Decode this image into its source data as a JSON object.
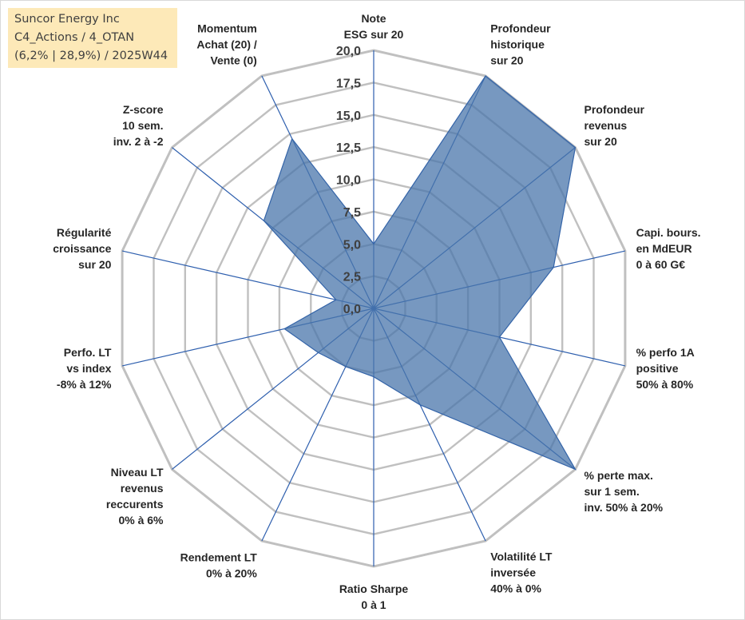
{
  "info": {
    "company": "Suncor Energy Inc",
    "category": "C4_Actions / 4_OTAN",
    "stats": "(6,2% | 28,9%) / 2025W44"
  },
  "colors": {
    "fill": "#4a76ab",
    "stroke": "#3464a8",
    "grid": "#c0c0c0",
    "spoke": "#2e5fae",
    "info_bg": "#fde9b8"
  },
  "chart_data": {
    "type": "radar",
    "title": "",
    "r_range": [
      0,
      20
    ],
    "r_ticks": [
      "0,0",
      "2,5",
      "5,0",
      "7,5",
      "10,0",
      "12,5",
      "15,0",
      "17,5",
      "20,0"
    ],
    "axes": [
      {
        "lines": [
          "Note",
          "ESG sur 20"
        ],
        "value": 5
      },
      {
        "lines": [
          "Profondeur",
          "historique",
          "sur 20"
        ],
        "value": 20
      },
      {
        "lines": [
          "Profondeur",
          "revenus",
          "sur 20"
        ],
        "value": 20
      },
      {
        "lines": [
          "Capi. bours.",
          "en MdEUR",
          "0 à 60 G€"
        ],
        "value": 14.3
      },
      {
        "lines": [
          "% perfo 1A",
          "positive",
          "50% à 80%"
        ],
        "value": 10
      },
      {
        "lines": [
          "% perte max.",
          "sur 1 sem.",
          "inv. 50% à 20%"
        ],
        "value": 20
      },
      {
        "lines": [
          "Volatilité LT",
          "inversée",
          "40% à 0%"
        ],
        "value": 8.3
      },
      {
        "lines": [
          "Ratio Sharpe",
          "0 à 1"
        ],
        "value": 5.3
      },
      {
        "lines": [
          "Rendement LT",
          "0% à 20%"
        ],
        "value": 5
      },
      {
        "lines": [
          "Niveau LT",
          "revenus",
          "reccurents",
          "0% à 6%"
        ],
        "value": 5.5
      },
      {
        "lines": [
          "Perfo. LT",
          "vs index",
          "-8% à 12%"
        ],
        "value": 7.1
      },
      {
        "lines": [
          "Régularité",
          "croissance",
          "sur 20"
        ],
        "value": 3
      },
      {
        "lines": [
          "Z-score",
          "10 sem.",
          "inv. 2 à -2"
        ],
        "value": 10.9
      },
      {
        "lines": [
          "Momentum",
          "Achat (20) /",
          "Vente (0)"
        ],
        "value": 14.6
      }
    ]
  }
}
